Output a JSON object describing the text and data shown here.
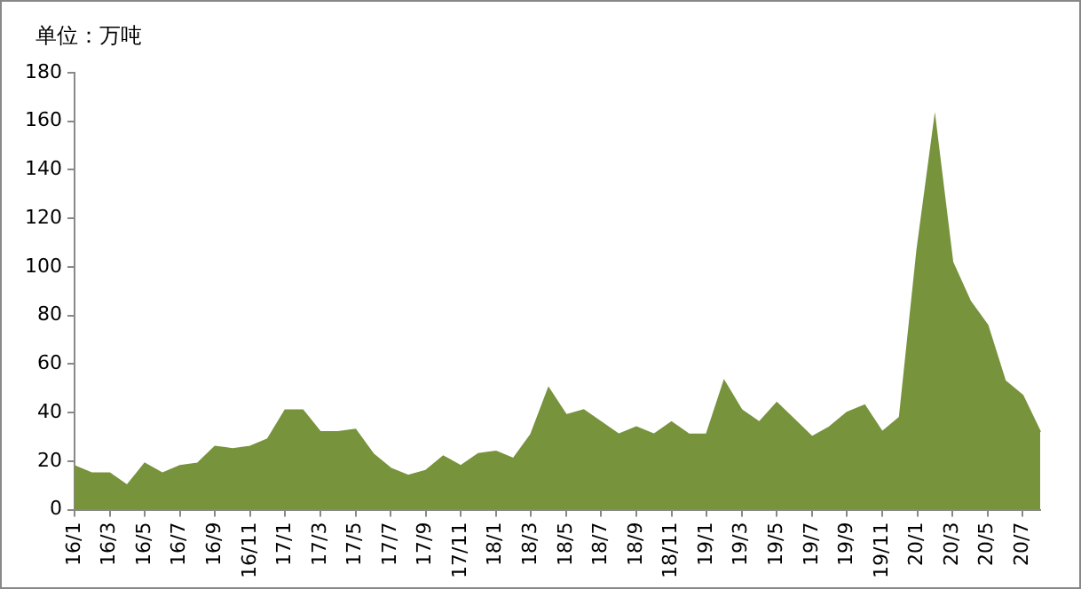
{
  "chart_data": {
    "type": "area",
    "ylabel": "单位：万吨",
    "categories": [
      "16/1",
      null,
      "16/3",
      null,
      "16/5",
      null,
      "16/7",
      null,
      "16/9",
      null,
      "16/11",
      null,
      "17/1",
      null,
      "17/3",
      null,
      "17/5",
      null,
      "17/7",
      null,
      "17/9",
      null,
      "17/11",
      null,
      "18/1",
      null,
      "18/3",
      null,
      "18/5",
      null,
      "18/7",
      null,
      "18/9",
      null,
      "18/11",
      null,
      "19/1",
      null,
      "19/3",
      null,
      "19/5",
      null,
      "19/7",
      null,
      "19/9",
      null,
      "19/11",
      null,
      "20/1",
      null,
      "20/3",
      null,
      "20/5",
      null,
      "20/7",
      null
    ],
    "series": [
      {
        "color": "#77933c",
        "values": [
          18,
          15,
          15,
          10,
          19,
          15,
          18,
          19,
          26,
          25,
          26,
          29,
          41,
          41,
          32,
          32,
          33,
          23,
          17,
          14,
          16,
          22,
          18,
          23,
          24,
          21,
          31,
          50,
          39,
          41,
          36,
          31,
          34,
          31,
          36,
          31,
          31,
          53,
          41,
          36,
          44,
          37,
          30,
          34,
          40,
          43,
          32,
          38,
          107,
          161,
          102,
          86,
          76,
          53,
          47,
          32
        ]
      }
    ],
    "ylim": [
      0,
      180
    ],
    "yticks": [
      0,
      20,
      40,
      60,
      80,
      100,
      120,
      140,
      160,
      180
    ],
    "grid": false,
    "legend": false
  }
}
